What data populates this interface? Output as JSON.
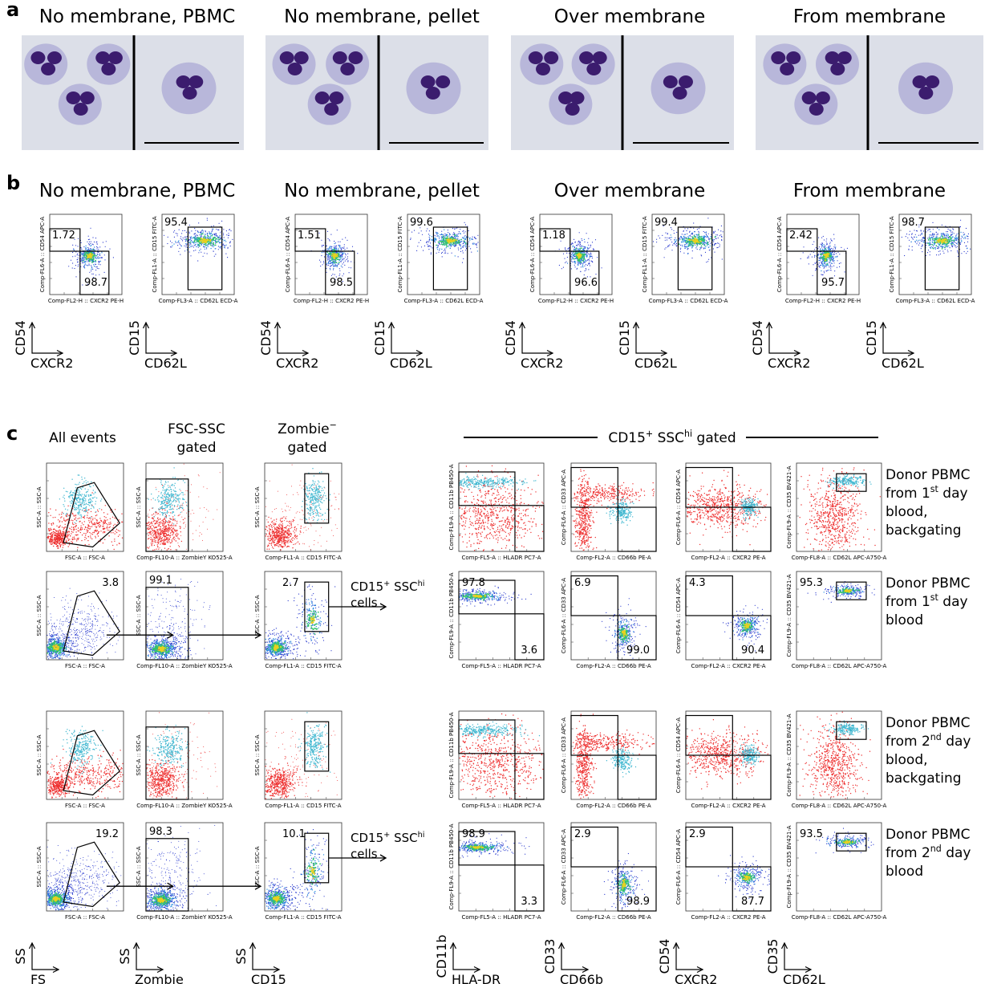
{
  "panel_a": {
    "label": "a",
    "titles": [
      "No membrane, PBMC",
      "No membrane, pellet",
      "Over membrane",
      "From membrane"
    ]
  },
  "panel_b": {
    "label": "b",
    "titles": [
      "No membrane, PBMC",
      "No membrane, pellet",
      "Over membrane",
      "From membrane"
    ],
    "plots": [
      {
        "cd54": "1.72",
        "cxcr2": "98.7",
        "cd15": "95.4"
      },
      {
        "cd54": "1.51",
        "cxcr2": "98.5",
        "cd15": "99.6"
      },
      {
        "cd54": "1.18",
        "cxcr2": "96.6",
        "cd15": "99.4"
      },
      {
        "cd54": "2.42",
        "cxcr2": "95.7",
        "cd15": "98.7"
      }
    ],
    "axis_names": {
      "cd54_y": "Comp-FL6-A :: CD54 APC-A",
      "cxcr2_x": "Comp-FL2-H :: CXCR2 PE-H",
      "cd15_y": "Comp-FL1-A :: CD15 FITC-A",
      "cd62l_x": "Comp-FL3-A :: CD62L ECD-A"
    },
    "keys": [
      [
        "CD54",
        "CXCR2"
      ],
      [
        "CD15",
        "CD62L"
      ]
    ]
  },
  "panel_c": {
    "label": "c",
    "headers": {
      "all_events": [
        [
          "All events"
        ]
      ],
      "fsc_ssc": [
        [
          "FSC-SSC"
        ],
        [
          "gated"
        ]
      ],
      "zombie": [
        [
          "Zombie",
          {
            "sup": "−"
          }
        ],
        [
          "gated"
        ]
      ],
      "cd15_gated": [
        [
          "CD15",
          {
            "sup": "+"
          },
          " SSC",
          {
            "sup": "hi"
          },
          " gated"
        ]
      ]
    },
    "left_axes": [
      {
        "y": "SSC-A :: SSC-A",
        "x": "FSC-A :: FSC-A"
      },
      {
        "y": "SSC-A :: SSC-A",
        "x": "Comp-FL10-A :: ZombieY KO525-A"
      },
      {
        "y": "SSC-A :: SSC-A",
        "x": "Comp-FL1-A :: CD15 FITC-A"
      }
    ],
    "right_axes": [
      {
        "y": "Comp-FL9-A :: CD11b PB450-A",
        "x": "Comp-FL5-A :: HLADR PC7-A"
      },
      {
        "y": "Comp-FL6-A :: CD33 APC-A",
        "x": "Comp-FL2-A :: CD66b PE-A"
      },
      {
        "y": "Comp-FL6-A :: CD54 APC-A",
        "x": "Comp-FL2-A :: CXCR2 PE-A"
      },
      {
        "y": "Comp-FL9-A :: CD35 BV421-A",
        "x": "Comp-FL8-A :: CD62L APC-A750-A"
      }
    ],
    "rows": [
      {
        "labels": [
          [
            "Donor PBMC"
          ],
          [
            "from 1",
            {
              "sup": "st"
            },
            " day"
          ],
          [
            "blood,"
          ],
          [
            "backgating"
          ]
        ]
      },
      {
        "left_gates": [
          "3.8",
          "99.1",
          "2.7"
        ],
        "right_gates": [
          [
            "97.8",
            "3.6"
          ],
          [
            "6.9",
            "99.0"
          ],
          [
            "4.3",
            "90.4"
          ],
          [
            "95.3"
          ]
        ],
        "annotation": [
          [
            "CD15",
            {
              "sup": "+"
            },
            " SSC",
            {
              "sup": "hi"
            }
          ],
          [
            "cells"
          ]
        ],
        "labels": [
          [
            "Donor PBMC"
          ],
          [
            "from 1",
            {
              "sup": "st"
            },
            " day"
          ],
          [
            "blood"
          ]
        ]
      },
      {
        "labels": [
          [
            "Donor PBMC"
          ],
          [
            "from 2",
            {
              "sup": "nd"
            },
            " day"
          ],
          [
            "blood,"
          ],
          [
            "backgating"
          ]
        ]
      },
      {
        "left_gates": [
          "19.2",
          "98.3",
          "10.1"
        ],
        "right_gates": [
          [
            "98.9",
            "3.3"
          ],
          [
            "2.9",
            "98.9"
          ],
          [
            "2.9",
            "87.7"
          ],
          [
            "93.5"
          ]
        ],
        "annotation": [
          [
            "CD15",
            {
              "sup": "+"
            },
            " SSC",
            {
              "sup": "hi"
            }
          ],
          [
            "cells"
          ]
        ],
        "labels": [
          [
            "Donor PBMC"
          ],
          [
            "from 2",
            {
              "sup": "nd"
            },
            " day"
          ],
          [
            "blood"
          ]
        ]
      }
    ],
    "keys": [
      [
        "SS",
        "FS"
      ],
      [
        "SS",
        "Zombie"
      ],
      [
        "SS",
        "CD15"
      ],
      [
        "CD11b",
        "HLA-DR"
      ],
      [
        "CD33",
        "CD66b"
      ],
      [
        "CD54",
        "CXCR2"
      ],
      [
        "CD35",
        "CD62L"
      ]
    ]
  }
}
